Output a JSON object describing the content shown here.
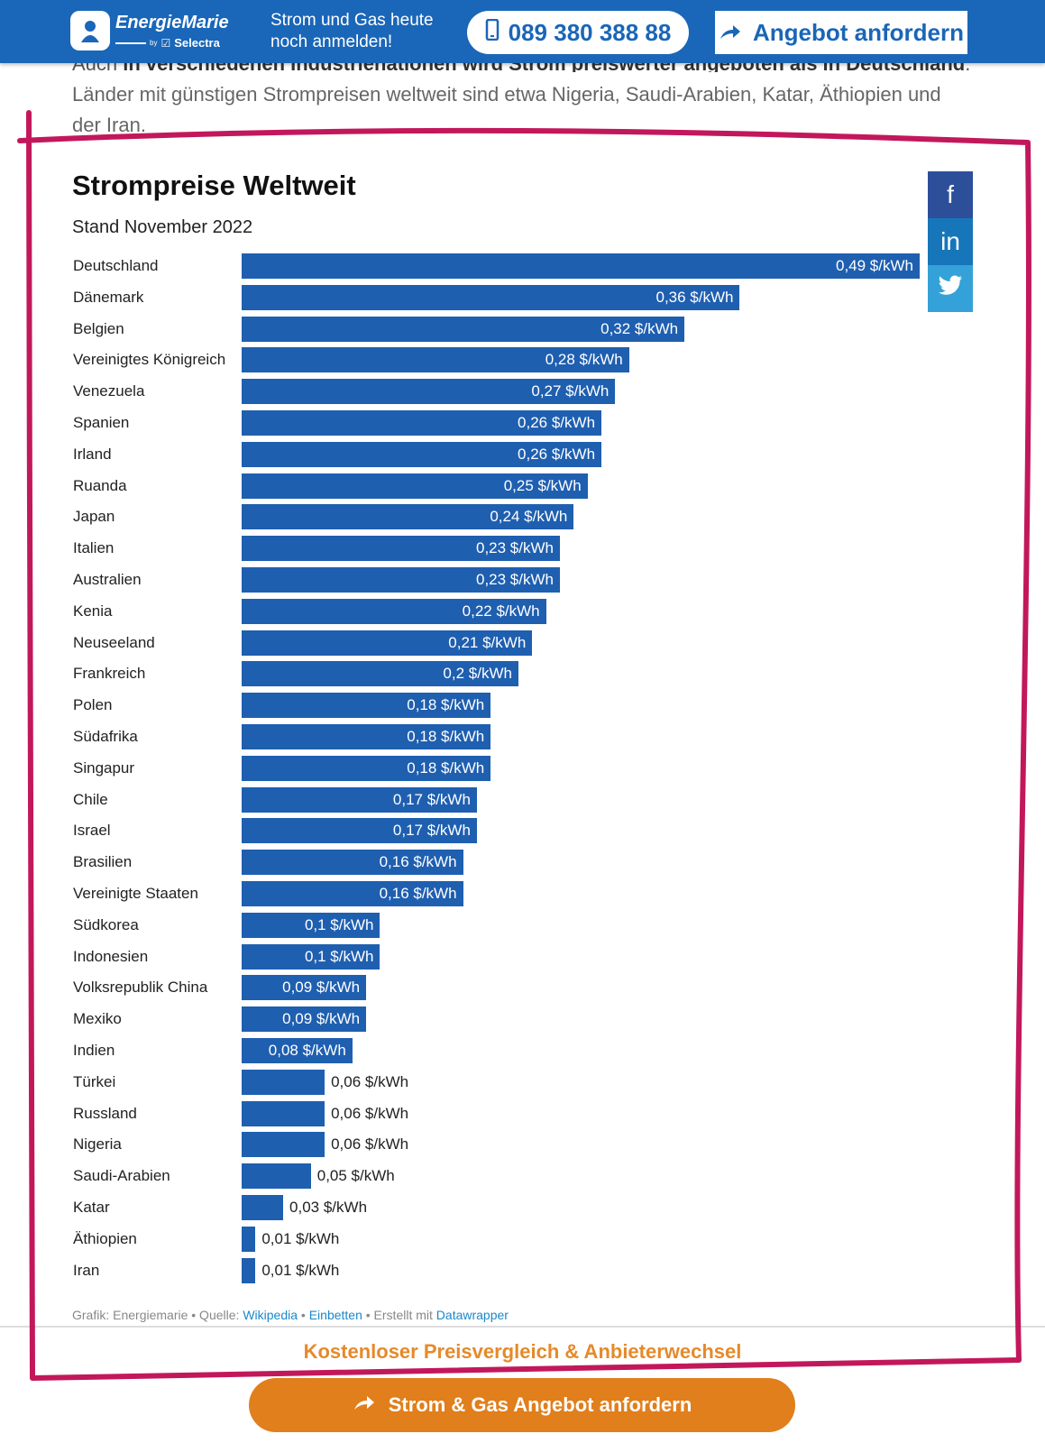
{
  "header": {
    "logo_name": "EnergieMarie",
    "logo_by": "by",
    "logo_brand": "Selectra",
    "promo_text": "Strom und Gas heute noch anmelden!",
    "phone": "089 380 388 88",
    "offer_label": "Angebot anfordern"
  },
  "intro": {
    "cut_prefix": "Auch ",
    "cut_bold": "in verschiedenen Industrienationen wird Strom preiswerter angeboten als in Deutschland",
    "cut_suffix": ".",
    "text": "Länder mit günstigen Strompreisen weltweit sind etwa Nigeria, Saudi-Arabien, Katar, Äthiopien und der Iran."
  },
  "share": {
    "facebook": "f",
    "linkedin": "in",
    "twitter": "🐦"
  },
  "chart_data": {
    "type": "bar",
    "orientation": "horizontal",
    "title": "Strompreise Weltweit",
    "subtitle": "Stand November 2022",
    "unit": "$/kWh",
    "xlim": [
      0,
      0.49
    ],
    "grid": false,
    "categories": [
      "Deutschland",
      "Dänemark",
      "Belgien",
      "Vereinigtes Königreich",
      "Venezuela",
      "Spanien",
      "Irland",
      "Ruanda",
      "Japan",
      "Italien",
      "Australien",
      "Kenia",
      "Neuseeland",
      "Frankreich",
      "Polen",
      "Südafrika",
      "Singapur",
      "Chile",
      "Israel",
      "Brasilien",
      "Vereinigte Staaten",
      "Südkorea",
      "Indonesien",
      "Volksrepublik China",
      "Mexiko",
      "Indien",
      "Türkei",
      "Russland",
      "Nigeria",
      "Saudi-Arabien",
      "Katar",
      "Äthiopien",
      "Iran"
    ],
    "values": [
      0.49,
      0.36,
      0.32,
      0.28,
      0.27,
      0.26,
      0.26,
      0.25,
      0.24,
      0.23,
      0.23,
      0.22,
      0.21,
      0.2,
      0.18,
      0.18,
      0.18,
      0.17,
      0.17,
      0.16,
      0.16,
      0.1,
      0.1,
      0.09,
      0.09,
      0.08,
      0.06,
      0.06,
      0.06,
      0.05,
      0.03,
      0.01,
      0.01
    ],
    "value_labels": [
      "0,49 $/kWh",
      "0,36 $/kWh",
      "0,32 $/kWh",
      "0,28 $/kWh",
      "0,27 $/kWh",
      "0,26 $/kWh",
      "0,26 $/kWh",
      "0,25 $/kWh",
      "0,24 $/kWh",
      "0,23 $/kWh",
      "0,23 $/kWh",
      "0,22 $/kWh",
      "0,21 $/kWh",
      "0,2 $/kWh",
      "0,18 $/kWh",
      "0,18 $/kWh",
      "0,18 $/kWh",
      "0,17 $/kWh",
      "0,17 $/kWh",
      "0,16 $/kWh",
      "0,16 $/kWh",
      "0,1 $/kWh",
      "0,1 $/kWh",
      "0,09 $/kWh",
      "0,09 $/kWh",
      "0,08 $/kWh",
      "0,06 $/kWh",
      "0,06 $/kWh",
      "0,06 $/kWh",
      "0,05 $/kWh",
      "0,03 $/kWh",
      "0,01 $/kWh",
      "0,01 $/kWh"
    ],
    "bar_color": "#1f5fb0"
  },
  "footer": {
    "credit_prefix": "Grafik: Energiemarie • Quelle: ",
    "source_link": "Wikipedia",
    "sep": " • ",
    "embed_link": "Einbetten",
    "made_with": " • Erstellt mit ",
    "datawrapper_link": "Datawrapper"
  },
  "compare_text": "Kostenloser Preisvergleich & Anbieterwechsel",
  "cta_label": "Strom & Gas Angebot anfordern",
  "colors": {
    "header_bg": "#1a66b8",
    "bar": "#1f5fb0",
    "cta": "#e07f1c",
    "annotation": "#c2185b"
  }
}
